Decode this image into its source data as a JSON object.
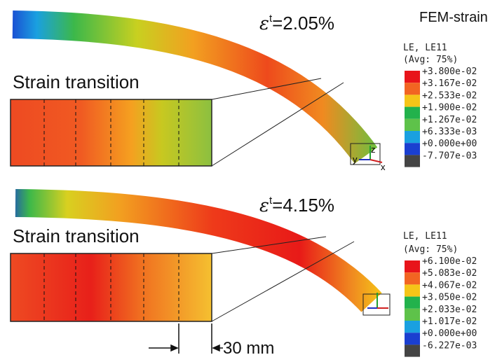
{
  "panels": [
    {
      "strain": {
        "symbol": "ε",
        "superscript": "t",
        "text": "=2.05%"
      },
      "heading": "FEM-strain",
      "inset_label": "Strain transition",
      "axes": [
        "z",
        "y",
        "x"
      ],
      "legend": {
        "title": "LE, LE11",
        "subtitle": "(Avg: 75%)",
        "labels": [
          "+3.800e-02",
          "+3.167e-02",
          "+2.533e-02",
          "+1.900e-02",
          "+1.267e-02",
          "+6.333e-03",
          "+0.000e+00",
          "-7.707e-03"
        ]
      }
    },
    {
      "strain": {
        "symbol": "ε",
        "superscript": "t",
        "text": "=4.15%"
      },
      "inset_label": "Strain transition",
      "dimension": "30 mm",
      "legend": {
        "title": "LE, LE11",
        "subtitle": "(Avg: 75%)",
        "labels": [
          "+6.100e-02",
          "+5.083e-02",
          "+4.067e-02",
          "+3.050e-02",
          "+2.033e-02",
          "+1.017e-02",
          "+0.000e+00",
          "-6.227e-03"
        ]
      }
    }
  ]
}
